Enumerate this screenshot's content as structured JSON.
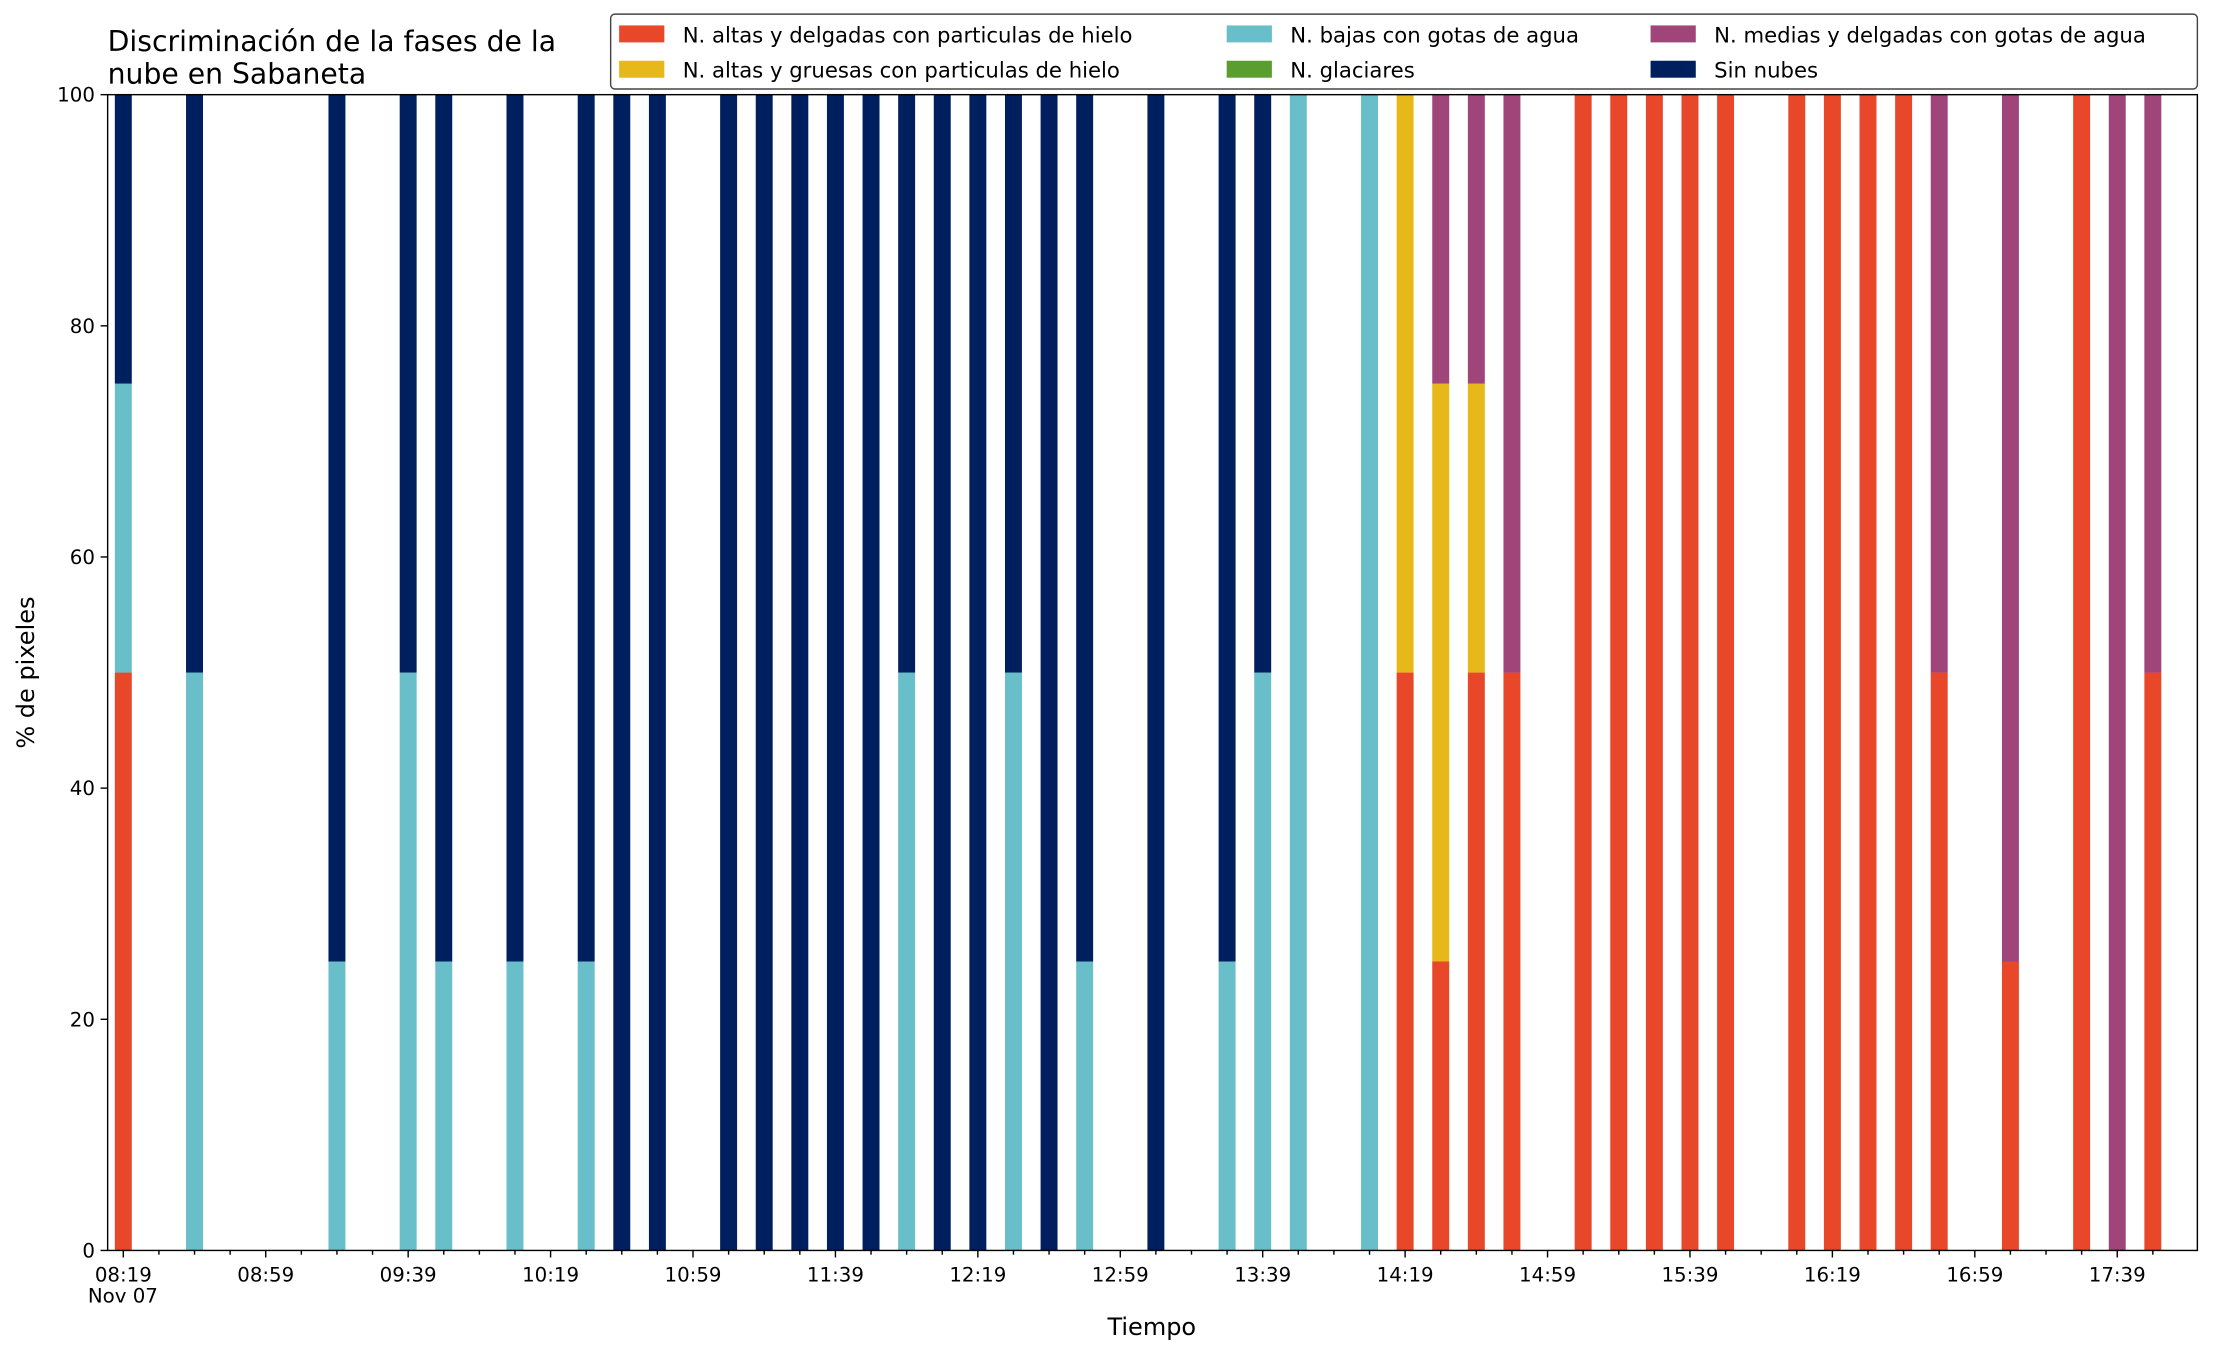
{
  "chart_data": {
    "type": "stacked_bar",
    "title_lines": [
      "Discriminación de la fases de la",
      "nube en Sabaneta"
    ],
    "x_label": "Tiempo",
    "y_label": "% de pixeles",
    "x_date_label": "Nov 07",
    "categories": [
      "08:19",
      null,
      null,
      null,
      "08:59",
      null,
      null,
      null,
      "09:39",
      null,
      null,
      null,
      "10:19",
      null,
      null,
      null,
      "10:59",
      null,
      null,
      null,
      "11:39",
      null,
      null,
      null,
      "12:19",
      null,
      null,
      null,
      "12:59",
      null,
      null,
      null,
      "13:39",
      null,
      null,
      null,
      "14:19",
      null,
      null,
      null,
      "14:59",
      null,
      null,
      null,
      "15:39",
      null,
      null,
      null,
      "16:19",
      null,
      null,
      null,
      "16:59",
      null,
      null,
      null,
      "17:39",
      null
    ],
    "series": [
      {
        "name": "N. altas y delgadas con particulas de hielo",
        "color": "#e8472a",
        "values": [
          50,
          0,
          0,
          0,
          0,
          0,
          0,
          0,
          0,
          0,
          0,
          0,
          0,
          0,
          0,
          0,
          0,
          0,
          0,
          0,
          0,
          0,
          0,
          0,
          0,
          0,
          0,
          0,
          0,
          0,
          0,
          0,
          0,
          0,
          0,
          0,
          50,
          25,
          50,
          50,
          0,
          100,
          100,
          100,
          100,
          100,
          0,
          100,
          100,
          100,
          100,
          50,
          0,
          25,
          0,
          100,
          0,
          50
        ]
      },
      {
        "name": "N. altas y gruesas con particulas de hielo",
        "color": "#e6b81a",
        "values": [
          0,
          0,
          0,
          0,
          0,
          0,
          0,
          0,
          0,
          0,
          0,
          0,
          0,
          0,
          0,
          0,
          0,
          0,
          0,
          0,
          0,
          0,
          0,
          0,
          0,
          0,
          0,
          0,
          0,
          0,
          0,
          0,
          0,
          0,
          0,
          0,
          50,
          50,
          25,
          0,
          0,
          0,
          0,
          0,
          0,
          0,
          0,
          0,
          0,
          0,
          0,
          0,
          0,
          0,
          0,
          0,
          0,
          0
        ]
      },
      {
        "name": "N. bajas con gotas de agua",
        "color": "#68bfc9",
        "values": [
          25,
          0,
          50,
          0,
          0,
          0,
          25,
          0,
          50,
          25,
          0,
          25,
          0,
          25,
          0,
          0,
          0,
          0,
          0,
          0,
          0,
          0,
          50,
          0,
          0,
          50,
          0,
          25,
          0,
          0,
          0,
          25,
          50,
          100,
          0,
          100,
          0,
          0,
          0,
          0,
          0,
          0,
          0,
          0,
          0,
          0,
          0,
          0,
          0,
          0,
          0,
          0,
          0,
          0,
          0,
          0,
          0,
          0
        ]
      },
      {
        "name": "N. glaciares",
        "color": "#5a9e2f",
        "values": [
          0,
          0,
          0,
          0,
          0,
          0,
          0,
          0,
          0,
          0,
          0,
          0,
          0,
          0,
          0,
          0,
          0,
          0,
          0,
          0,
          0,
          0,
          0,
          0,
          0,
          0,
          0,
          0,
          0,
          0,
          0,
          0,
          0,
          0,
          0,
          0,
          0,
          0,
          0,
          0,
          0,
          0,
          0,
          0,
          0,
          0,
          0,
          0,
          0,
          0,
          0,
          0,
          0,
          0,
          0,
          0,
          0,
          0
        ]
      },
      {
        "name": "N. medias y delgadas con gotas de agua",
        "color": "#a0457a",
        "values": [
          0,
          0,
          0,
          0,
          0,
          0,
          0,
          0,
          0,
          0,
          0,
          0,
          0,
          0,
          0,
          0,
          0,
          0,
          0,
          0,
          0,
          0,
          0,
          0,
          0,
          0,
          0,
          0,
          0,
          0,
          0,
          0,
          0,
          0,
          0,
          0,
          0,
          25,
          25,
          50,
          0,
          0,
          0,
          0,
          0,
          0,
          0,
          0,
          0,
          0,
          0,
          50,
          0,
          75,
          0,
          0,
          100,
          50
        ]
      },
      {
        "name": "Sin nubes",
        "color": "#001f5e",
        "values": [
          25,
          0,
          50,
          0,
          0,
          0,
          75,
          0,
          50,
          75,
          0,
          75,
          0,
          75,
          100,
          100,
          0,
          100,
          100,
          100,
          100,
          100,
          50,
          100,
          100,
          50,
          100,
          75,
          0,
          100,
          0,
          75,
          50,
          0,
          0,
          0,
          0,
          0,
          0,
          0,
          0,
          0,
          0,
          0,
          0,
          0,
          0,
          0,
          0,
          0,
          0,
          0,
          0,
          0,
          0,
          0,
          0,
          0
        ]
      }
    ],
    "ylim": [
      0,
      100
    ],
    "yticks": [
      0,
      20,
      40,
      60,
      80,
      100
    ],
    "legend": "top right"
  }
}
